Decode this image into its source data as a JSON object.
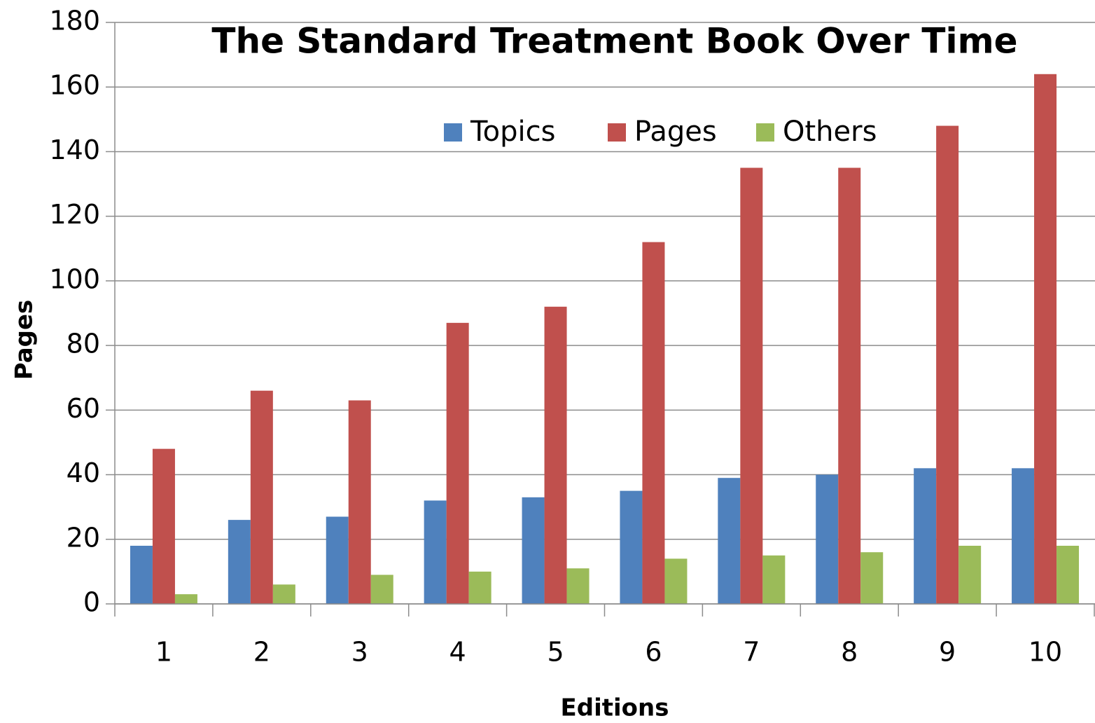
{
  "chart_data": {
    "type": "bar",
    "title": "The Standard Treatment Book Over Time",
    "x_label": "Editions",
    "y_label": "Pages",
    "categories": [
      "1",
      "2",
      "3",
      "4",
      "5",
      "6",
      "7",
      "8",
      "9",
      "10"
    ],
    "series": [
      {
        "name": "Topics",
        "color": "#4f81bd",
        "values": [
          18,
          26,
          27,
          32,
          33,
          35,
          39,
          40,
          42,
          42
        ]
      },
      {
        "name": "Pages",
        "color": "#c0504d",
        "values": [
          48,
          66,
          63,
          87,
          92,
          112,
          135,
          135,
          148,
          164
        ]
      },
      {
        "name": "Others",
        "color": "#9bbb59",
        "values": [
          3,
          6,
          9,
          10,
          11,
          14,
          15,
          16,
          18,
          18
        ]
      }
    ],
    "ylim": [
      0,
      180
    ],
    "yticks": [
      0,
      20,
      40,
      60,
      80,
      100,
      120,
      140,
      160,
      180
    ],
    "grid": true,
    "legend": "top"
  }
}
